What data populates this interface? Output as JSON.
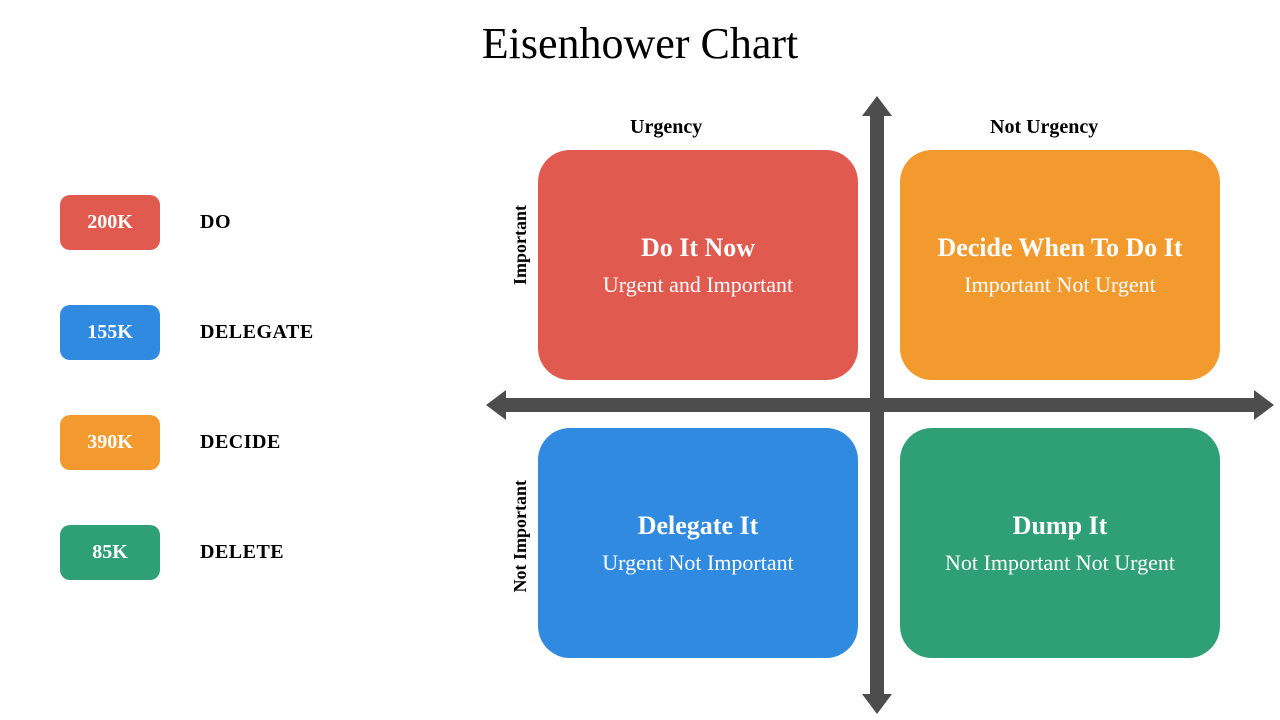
{
  "title": "Eisenhower Chart",
  "colors": {
    "red": "#e05a4f",
    "blue": "#2f8ae0",
    "orange": "#f29a2e",
    "green": "#2f9f78",
    "axis": "#4d4d4d",
    "bg": "#ffffff"
  },
  "legend": [
    {
      "value": "200K",
      "label": "DO",
      "color": "#e05a4f"
    },
    {
      "value": "155K",
      "label": "DELEGATE",
      "color": "#2f8ae0"
    },
    {
      "value": "390K",
      "label": "DECIDE",
      "color": "#f29a2e"
    },
    {
      "value": "85K",
      "label": "DELETE",
      "color": "#2f9f78"
    }
  ],
  "axis_labels": {
    "col_left": "Urgency",
    "col_right": "Not Urgency",
    "row_top": "Important",
    "row_bottom": "Not Important"
  },
  "quadrants": {
    "tl": {
      "title": "Do It Now",
      "subtitle": "Urgent and Important",
      "color": "#e05a4f"
    },
    "tr": {
      "title": "Decide When To Do It",
      "subtitle": "Important Not Urgent",
      "color": "#f29a2e"
    },
    "bl": {
      "title": "Delegate It",
      "subtitle": "Urgent Not Important",
      "color": "#2f8ae0"
    },
    "br": {
      "title": "Dump It",
      "subtitle": "Not Important Not Urgent",
      "color": "#2f9f78"
    }
  },
  "style": {
    "title_fontsize": 44,
    "legend_badge_w": 100,
    "legend_badge_h": 55,
    "legend_badge_radius": 10,
    "quad_w": 320,
    "quad_h": 230,
    "quad_radius": 32,
    "axis_thickness": 14
  }
}
